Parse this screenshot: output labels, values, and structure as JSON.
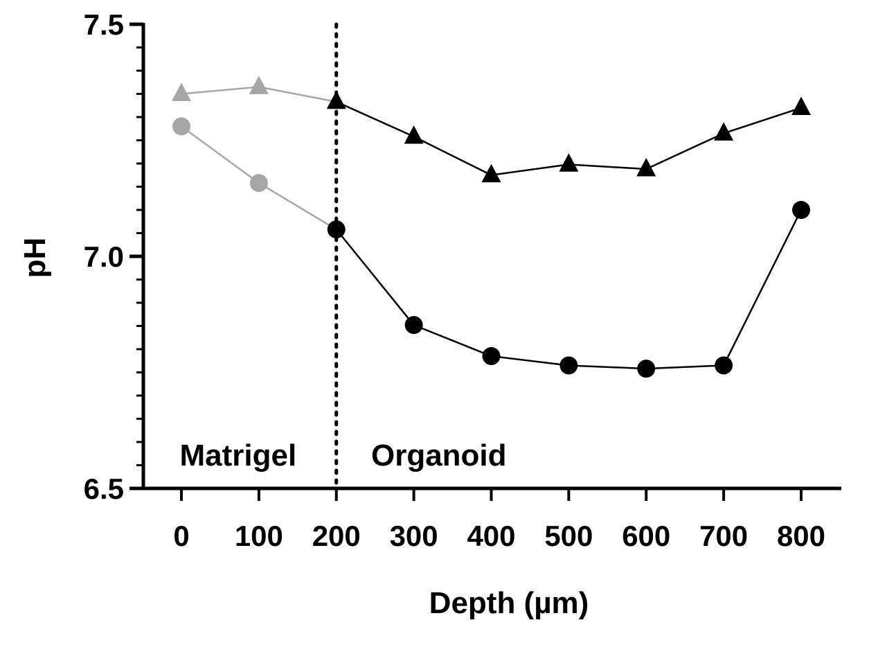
{
  "chart_data": {
    "type": "line",
    "xlabel": "Depth (µm)",
    "ylabel": "pH",
    "xlim": [
      0,
      800
    ],
    "ylim": [
      6.5,
      7.5
    ],
    "x_ticks": [
      0,
      100,
      200,
      300,
      400,
      500,
      600,
      700,
      800
    ],
    "y_ticks": [
      6.5,
      7.0,
      7.5
    ],
    "y_tick_labels": [
      "6.5",
      "7.0",
      "7.5"
    ],
    "y_minor_step": 0.05,
    "divider_x": 200,
    "regions": [
      {
        "label": "Matrigel",
        "x_from": 0,
        "x_to": 200
      },
      {
        "label": "Organoid",
        "x_from": 200,
        "x_to": 800
      }
    ],
    "grid": false,
    "legend": "none",
    "colors": {
      "matrigel": "#a6a6a6",
      "organoid": "#000000"
    },
    "series": [
      {
        "marker": "triangle",
        "x": [
          0,
          100,
          200,
          300,
          400,
          500,
          600,
          700,
          800
        ],
        "values": [
          7.35,
          7.365,
          7.333,
          7.258,
          7.175,
          7.198,
          7.188,
          7.265,
          7.32
        ]
      },
      {
        "marker": "circle",
        "x": [
          0,
          100,
          200,
          300,
          400,
          500,
          600,
          700,
          800
        ],
        "values": [
          7.28,
          7.158,
          7.058,
          6.852,
          6.785,
          6.765,
          6.758,
          6.765,
          7.1
        ]
      }
    ]
  }
}
